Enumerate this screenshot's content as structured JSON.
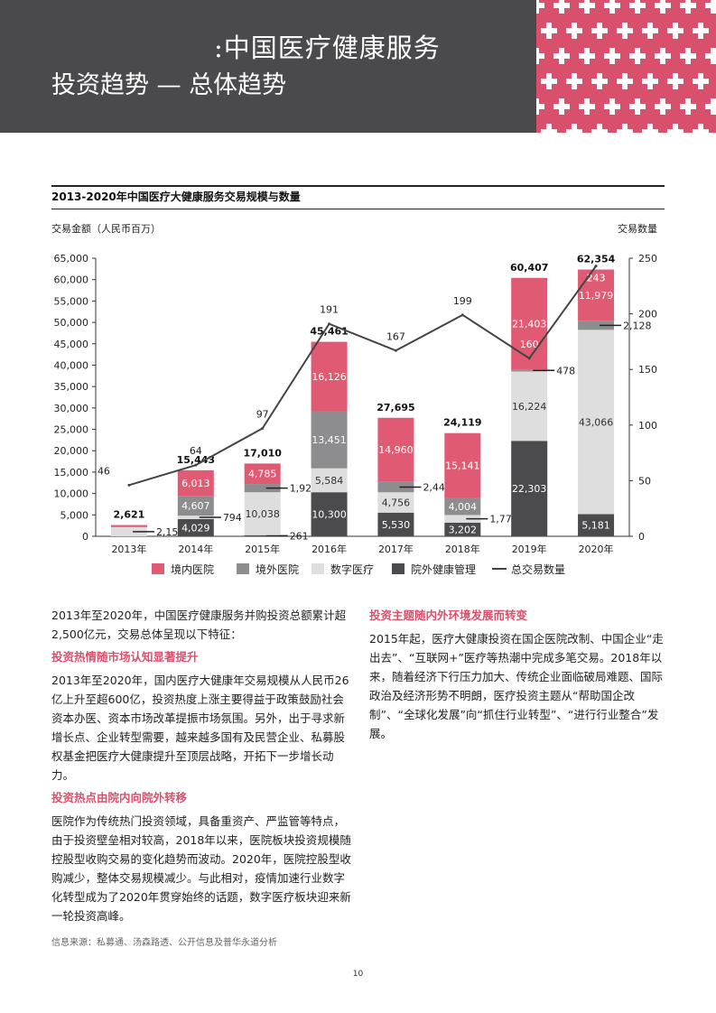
{
  "header": {
    "title": ":中国医疗健康服务",
    "subtitle": "投资趋势 — 总体趋势"
  },
  "colors": {
    "banner": "#4a4a4c",
    "accent": "#d8506b",
    "hospital_internal": "#e05a74",
    "hospital_external": "#8d8d8f",
    "digital": "#dedede",
    "outside_health": "#4b4b4d",
    "line": "#444444"
  },
  "chart_data": {
    "type": "bar",
    "title": "2013-2020年中国医疗大健康服务交易规模与数量",
    "ylabel_left": "交易金额（人民币百万）",
    "ylabel_right": "交易数量",
    "ylim_left": [
      0,
      65000
    ],
    "ylim_right": [
      0,
      250
    ],
    "yticks_left": [
      "0",
      "5,000",
      "10,000",
      "15,000",
      "20,000",
      "25,000",
      "30,000",
      "35,000",
      "40,000",
      "45,000",
      "50,000",
      "55,000",
      "60,000",
      "65,000"
    ],
    "yticks_right": [
      "0",
      "50",
      "100",
      "150",
      "200",
      "250"
    ],
    "categories": [
      "2013年",
      "2014年",
      "2015年",
      "2016年",
      "2017年",
      "2018年",
      "2019年",
      "2020年"
    ],
    "stack_order": [
      "院外健康管理",
      "数字医疗",
      "境外医院",
      "境内医院"
    ],
    "series": [
      {
        "name": "境内医院",
        "values": [
          471,
          6013,
          4785,
          16126,
          14960,
          15141,
          21403,
          11979
        ],
        "labels": [
          "",
          "6,013",
          "4,785",
          "16,126",
          "14,960",
          "15,141",
          "21,403",
          "11,979"
        ]
      },
      {
        "name": "境外医院",
        "values": [
          0,
          4607,
          1926,
          13451,
          2449,
          4004,
          478,
          2128
        ],
        "labels": [
          "",
          "4,607",
          "1,926",
          "13,451",
          "2,449",
          "4,004",
          "478",
          "2,128"
        ]
      },
      {
        "name": "数字医疗",
        "values": [
          2150,
          794,
          10038,
          5584,
          4756,
          1772,
          16224,
          43066
        ],
        "labels": [
          "2,150",
          "794",
          "10,038",
          "5,584",
          "4,756",
          "1,772",
          "16,224",
          "43,066"
        ]
      },
      {
        "name": "院外健康管理",
        "values": [
          0,
          4029,
          261,
          10300,
          5530,
          3202,
          22303,
          5181
        ],
        "labels": [
          "",
          "4,029",
          "261",
          "10,300",
          "5,530",
          "3,202",
          "22,303",
          "5,181"
        ]
      }
    ],
    "extra_label": {
      "index": 7,
      "text": "243"
    },
    "small_label": {
      "index": 6,
      "text": "160"
    },
    "totals": [
      "2,621",
      "15,443",
      "17,010",
      "45,461",
      "27,695",
      "24,119",
      "60,407",
      "62,354"
    ],
    "line": {
      "name": "总交易数量",
      "values": [
        46,
        64,
        97,
        191,
        167,
        199,
        160,
        243
      ],
      "labels": [
        "46",
        "64",
        "97",
        "191",
        "167",
        "199",
        "",
        ""
      ]
    },
    "legend": [
      "境内医院",
      "境外医院",
      "数字医疗",
      "院外健康管理",
      "总交易数量"
    ],
    "legend_position": "bottom",
    "grid": false
  },
  "intro": "2013年至2020年，中国医疗健康服务并购投资总额累计超2,500亿元，交易总体呈现以下特征：",
  "sections_left": [
    {
      "heading": "投资热情随市场认知显著提升",
      "body": "2013年至2020年，国内医疗大健康年交易规模从人民币26亿上升至超600亿，投资热度上涨主要得益于政策鼓励社会资本办医、资本市场改革提振市场氛围。另外，出于寻求新增长点、企业转型需要，越来越多国有及民营企业、私募股权基金把医疗大健康提升至顶层战略，开拓下一步增长动力。"
    },
    {
      "heading": "投资热点由院内向院外转移",
      "body": "医院作为传统热门投资领域，具备重资产、严监管等特点，由于投资壁垒相对较高，2018年以来，医院板块投资规模随控股型收购交易的变化趋势而波动。2020年，医院控股型收购减少，整体交易规模减少。与此相对，疫情加速行业数字化转型成为了2020年贯穿始终的话题，数字医疗板块迎来新一轮投资高峰。"
    }
  ],
  "section_right": {
    "heading": "投资主题随内外环境发展而转变",
    "body": "2015年起，医疗大健康投资在国企医院改制、中国企业“走出去”、“互联网+”医疗等热潮中完成多笔交易。2018年以来，随着经济下行压力加大、传统企业面临破局难题、国际政治及经济形势不明朗，医疗投资主题从“帮助国企改制”、“全球化发展”向“抓住行业转型”、“进行行业整合”发展。"
  },
  "source": "信息来源：私募通、汤森路透、公开信息及普华永道分析",
  "page_number": "10"
}
